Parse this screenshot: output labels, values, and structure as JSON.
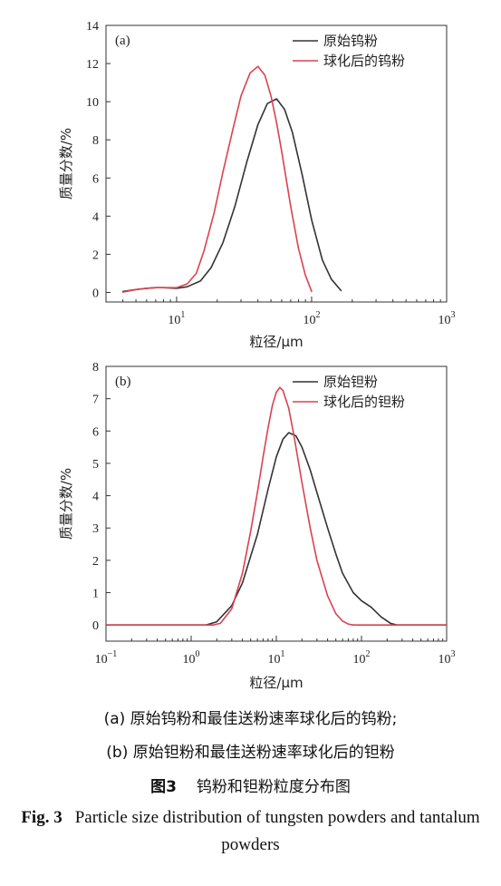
{
  "chart_data": [
    {
      "type": "line",
      "panel_label": "(a)",
      "xlabel": "粒径/μm",
      "ylabel": "质量分数/%",
      "xscale": "log",
      "xlim": [
        3,
        1000
      ],
      "ylim": [
        -0.5,
        14
      ],
      "yticks": [
        0,
        2,
        4,
        6,
        8,
        10,
        12,
        14
      ],
      "xticks": [
        {
          "value": 10,
          "base": "10",
          "exp": "1"
        },
        {
          "value": 100,
          "base": "10",
          "exp": "2"
        },
        {
          "value": 1000,
          "base": "10",
          "exp": "3"
        }
      ],
      "legend_position": "top-right",
      "series": [
        {
          "name": "原始钨粉",
          "color": "#333333",
          "x": [
            4,
            5,
            6,
            7,
            8,
            10,
            12,
            15,
            18,
            22,
            27,
            33,
            40,
            47,
            55,
            63,
            72,
            85,
            100,
            120,
            140,
            165
          ],
          "y": [
            0.05,
            0.15,
            0.22,
            0.25,
            0.25,
            0.22,
            0.3,
            0.6,
            1.3,
            2.6,
            4.5,
            6.8,
            8.8,
            9.9,
            10.15,
            9.6,
            8.4,
            6.2,
            3.8,
            1.7,
            0.7,
            0.1
          ]
        },
        {
          "name": "球化后的钨粉",
          "color": "#d9434e",
          "x": [
            4,
            5,
            6,
            7,
            8,
            10,
            12,
            14,
            16,
            19,
            22,
            26,
            30,
            35,
            40,
            45,
            50,
            55,
            60,
            70,
            80,
            90,
            100
          ],
          "y": [
            0.02,
            0.15,
            0.22,
            0.25,
            0.25,
            0.25,
            0.45,
            1.0,
            2.2,
            4.2,
            6.3,
            8.5,
            10.3,
            11.5,
            11.85,
            11.4,
            10.3,
            8.9,
            7.4,
            4.5,
            2.3,
            0.9,
            0.05
          ]
        }
      ]
    },
    {
      "type": "line",
      "panel_label": "(b)",
      "xlabel": "粒径/μm",
      "ylabel": "质量分数/%",
      "xscale": "log",
      "xlim": [
        0.1,
        1000
      ],
      "ylim": [
        -0.5,
        8
      ],
      "yticks": [
        0,
        1,
        2,
        3,
        4,
        5,
        6,
        7,
        8
      ],
      "xticks": [
        {
          "value": 0.1,
          "base": "10",
          "exp": "−1"
        },
        {
          "value": 1,
          "base": "10",
          "exp": "0"
        },
        {
          "value": 10,
          "base": "10",
          "exp": "1"
        },
        {
          "value": 100,
          "base": "10",
          "exp": "2"
        },
        {
          "value": 1000,
          "base": "10",
          "exp": "3"
        }
      ],
      "legend_position": "top-right",
      "series": [
        {
          "name": "原始钽粉",
          "color": "#333333",
          "x": [
            0.1,
            1.5,
            2,
            3,
            4,
            6,
            8,
            10,
            12,
            14,
            17,
            20,
            25,
            30,
            40,
            50,
            60,
            80,
            100,
            130,
            170,
            220,
            260,
            1000
          ],
          "y": [
            0,
            0,
            0.1,
            0.6,
            1.3,
            2.8,
            4.2,
            5.2,
            5.75,
            5.95,
            5.85,
            5.5,
            4.8,
            4.1,
            3.0,
            2.2,
            1.6,
            1.0,
            0.75,
            0.55,
            0.25,
            0.05,
            0,
            0
          ]
        },
        {
          "name": "球化后的钽粉",
          "color": "#d9434e",
          "x": [
            0.1,
            1.8,
            2.2,
            3,
            4,
            5,
            6,
            7,
            8,
            9,
            10,
            11,
            12,
            14,
            16,
            20,
            25,
            30,
            40,
            50,
            60,
            70,
            80,
            1000
          ],
          "y": [
            0,
            0,
            0.05,
            0.5,
            1.6,
            2.9,
            4.1,
            5.2,
            6.1,
            6.8,
            7.2,
            7.35,
            7.25,
            6.7,
            5.9,
            4.4,
            3.0,
            2.0,
            0.9,
            0.35,
            0.12,
            0.03,
            0,
            0
          ]
        }
      ]
    }
  ],
  "caption": {
    "line_a": "(a)  原始钨粉和最佳送粉速率球化后的钨粉;",
    "line_b": "(b)  原始钽粉和最佳送粉速率球化后的钽粉",
    "fig_cn_label": "图3",
    "fig_cn_text": "钨粉和钽粉粒度分布图",
    "fig_en_label": "Fig. 3",
    "fig_en_text": "Particle size distribution of tungsten powders and tantalum powders"
  }
}
